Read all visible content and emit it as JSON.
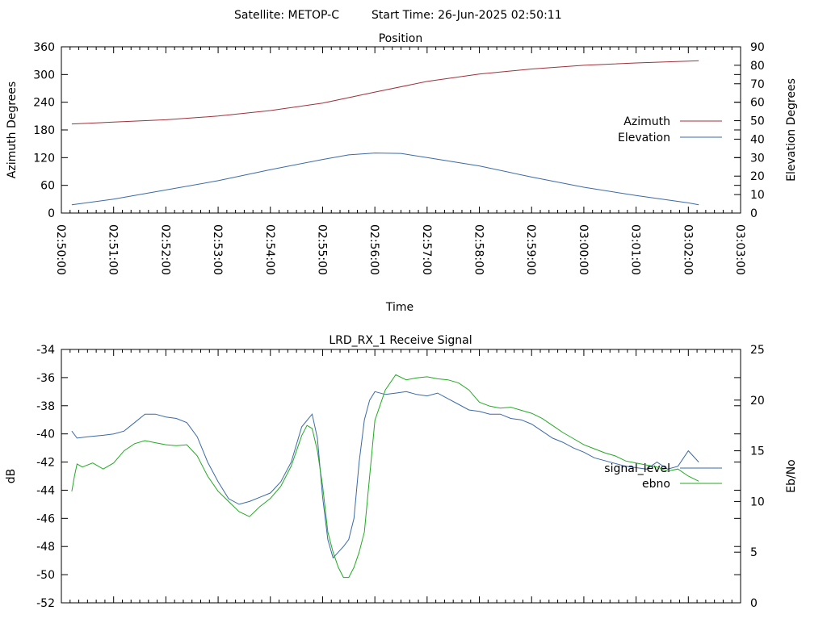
{
  "header": {
    "satellite": "Satellite: METOP-C",
    "start_time": "Start Time: 26-Jun-2025 02:50:11"
  },
  "chart_data": [
    {
      "type": "line",
      "title": "Position",
      "xlabel": "Time",
      "ylabel": "Azimuth Degrees",
      "y2label": "Elevation Degrees",
      "xticks": [
        "02:50:00",
        "02:51:00",
        "02:52:00",
        "02:53:00",
        "02:54:00",
        "02:55:00",
        "02:56:00",
        "02:57:00",
        "02:58:00",
        "02:59:00",
        "03:00:00",
        "03:01:00",
        "03:02:00",
        "03:03:00"
      ],
      "xlim": [
        0,
        13
      ],
      "ylim": [
        0,
        360
      ],
      "yticks": [
        "0",
        "60",
        "120",
        "180",
        "240",
        "300",
        "360"
      ],
      "y2lim": [
        0,
        90
      ],
      "y2ticks": [
        "0",
        "10",
        "20",
        "30",
        "40",
        "50",
        "60",
        "70",
        "80",
        "90"
      ],
      "grid": false,
      "legend_position": "right",
      "series": [
        {
          "name": "Azimuth",
          "color": "#a0303a",
          "axis": "y",
          "x": [
            0.2,
            1,
            2,
            3,
            4,
            5,
            6,
            7,
            8,
            9,
            10,
            11,
            12,
            12.2
          ],
          "values": [
            193,
            197,
            202,
            210,
            222,
            238,
            262,
            285,
            301,
            312,
            320,
            325,
            329,
            330
          ]
        },
        {
          "name": "Elevation",
          "color": "#3a6aa8",
          "axis": "y2",
          "x": [
            0.2,
            1,
            2,
            3,
            4,
            5,
            5.5,
            6,
            6.5,
            7,
            8,
            9,
            10,
            11,
            12,
            12.2
          ],
          "values": [
            4.5,
            7.5,
            12.5,
            17.5,
            23.5,
            29,
            31.5,
            32.5,
            32.3,
            30,
            25.5,
            19.5,
            14,
            9.5,
            5.5,
            4.5
          ]
        }
      ]
    },
    {
      "type": "line",
      "title": "LRD_RX_1 Receive Signal",
      "xlabel": "",
      "ylabel": "dB",
      "y2label": "Eb/No",
      "xlim": [
        0,
        13
      ],
      "ylim": [
        -52,
        -34
      ],
      "yticks": [
        "-52",
        "-50",
        "-48",
        "-46",
        "-44",
        "-42",
        "-40",
        "-38",
        "-36",
        "-34"
      ],
      "y2lim": [
        0,
        25
      ],
      "y2ticks": [
        "0",
        "5",
        "10",
        "15",
        "20",
        "25"
      ],
      "grid": false,
      "legend_position": "right",
      "series": [
        {
          "name": "signal_level",
          "color": "#3a6aa8",
          "axis": "y",
          "x": [
            0.2,
            0.3,
            0.5,
            0.8,
            1.0,
            1.2,
            1.4,
            1.6,
            1.8,
            2.0,
            2.2,
            2.4,
            2.6,
            2.8,
            3.0,
            3.2,
            3.4,
            3.6,
            3.8,
            4.0,
            4.2,
            4.4,
            4.6,
            4.8,
            4.9,
            5.0,
            5.1,
            5.2,
            5.3,
            5.4,
            5.5,
            5.6,
            5.7,
            5.8,
            5.9,
            6.0,
            6.2,
            6.4,
            6.6,
            6.8,
            7.0,
            7.2,
            7.4,
            7.6,
            7.8,
            8.0,
            8.2,
            8.4,
            8.6,
            8.8,
            9.0,
            9.2,
            9.4,
            9.6,
            9.8,
            10.0,
            10.2,
            10.4,
            10.6,
            10.8,
            11.0,
            11.2,
            11.4,
            11.6,
            11.8,
            12.0,
            12.2
          ],
          "values": [
            -39.8,
            -40.3,
            -40.2,
            -40.1,
            -40.0,
            -39.8,
            -39.2,
            -38.6,
            -38.6,
            -38.8,
            -38.9,
            -39.2,
            -40.2,
            -42.0,
            -43.4,
            -44.6,
            -45.0,
            -44.8,
            -44.5,
            -44.2,
            -43.4,
            -42.0,
            -39.5,
            -38.6,
            -40.3,
            -44.5,
            -47.5,
            -48.8,
            -48.4,
            -48.0,
            -47.5,
            -46.0,
            -42.0,
            -39.0,
            -37.6,
            -37.0,
            -37.2,
            -37.1,
            -37.0,
            -37.2,
            -37.3,
            -37.1,
            -37.5,
            -37.9,
            -38.3,
            -38.4,
            -38.6,
            -38.6,
            -38.9,
            -39.0,
            -39.3,
            -39.8,
            -40.3,
            -40.6,
            -41.0,
            -41.3,
            -41.7,
            -41.9,
            -42.1,
            -42.3,
            -42.4,
            -42.5,
            -42.0,
            -42.5,
            -42.3,
            -41.2,
            -42.0
          ]
        },
        {
          "name": "ebno",
          "color": "#22aa22",
          "axis": "y2",
          "x": [
            0.2,
            0.25,
            0.3,
            0.4,
            0.6,
            0.8,
            1.0,
            1.2,
            1.4,
            1.6,
            1.8,
            2.0,
            2.2,
            2.4,
            2.6,
            2.8,
            3.0,
            3.2,
            3.4,
            3.6,
            3.8,
            4.0,
            4.2,
            4.4,
            4.6,
            4.7,
            4.8,
            4.9,
            5.0,
            5.1,
            5.2,
            5.3,
            5.4,
            5.5,
            5.6,
            5.7,
            5.8,
            5.9,
            6.0,
            6.2,
            6.4,
            6.6,
            6.8,
            7.0,
            7.2,
            7.4,
            7.6,
            7.8,
            8.0,
            8.2,
            8.4,
            8.6,
            8.8,
            9.0,
            9.2,
            9.4,
            9.6,
            9.8,
            10.0,
            10.2,
            10.4,
            10.6,
            10.8,
            11.0,
            11.2,
            11.4,
            11.6,
            11.8,
            12.0,
            12.2
          ],
          "values": [
            11.0,
            12.5,
            13.7,
            13.4,
            13.8,
            13.2,
            13.8,
            15.0,
            15.7,
            16.0,
            15.8,
            15.6,
            15.5,
            15.6,
            14.5,
            12.5,
            11.0,
            10.0,
            9.0,
            8.5,
            9.5,
            10.3,
            11.5,
            13.5,
            16.5,
            17.5,
            17.2,
            15.0,
            11.5,
            7.0,
            5.0,
            3.5,
            2.5,
            2.5,
            3.5,
            5.0,
            7.0,
            12.5,
            18.0,
            21.0,
            22.5,
            22.0,
            22.2,
            22.3,
            22.1,
            22.0,
            21.7,
            21.0,
            19.8,
            19.4,
            19.2,
            19.3,
            19.0,
            18.7,
            18.2,
            17.5,
            16.8,
            16.2,
            15.6,
            15.2,
            14.8,
            14.5,
            14.0,
            13.8,
            13.6,
            13.4,
            13.0,
            13.2,
            12.5,
            12.0
          ]
        }
      ]
    }
  ]
}
